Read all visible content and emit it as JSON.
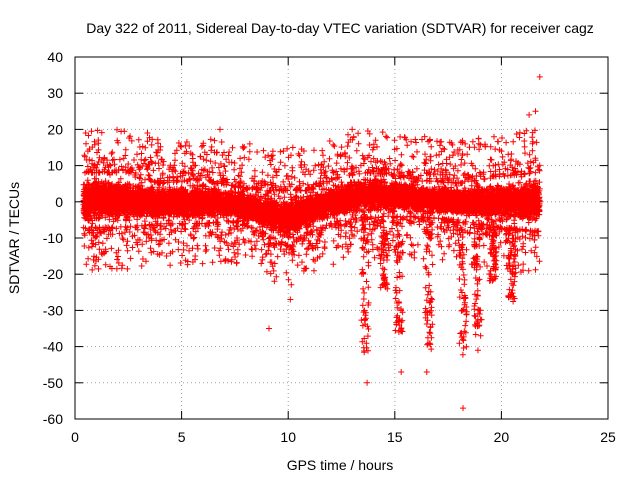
{
  "chart_data": {
    "type": "scatter",
    "title": "Day 322 of 2011, Sidereal Day-to-day VTEC variation (SDTVAR) for receiver cagz",
    "xlabel": "GPS time / hours",
    "ylabel": "SDTVAR / TECUs",
    "xlim": [
      0,
      25
    ],
    "ylim": [
      -60,
      40
    ],
    "xticks": [
      0,
      5,
      10,
      15,
      20,
      25
    ],
    "yticks": [
      -60,
      -50,
      -40,
      -30,
      -20,
      -10,
      0,
      10,
      20,
      30,
      40
    ],
    "grid": true,
    "marker": "+",
    "color": "#ff0000",
    "x_range_of_data": [
      0.4,
      21.8
    ],
    "dense_band": [
      {
        "x": 0.5,
        "low": -7,
        "high": 8
      },
      {
        "x": 2,
        "low": -7,
        "high": 8
      },
      {
        "x": 4,
        "low": -6,
        "high": 5
      },
      {
        "x": 6,
        "low": -6,
        "high": 6
      },
      {
        "x": 7.5,
        "low": -5,
        "high": 4
      },
      {
        "x": 9,
        "low": -9,
        "high": 3
      },
      {
        "x": 10,
        "low": -12,
        "high": 3
      },
      {
        "x": 11,
        "low": -8,
        "high": 3
      },
      {
        "x": 12.5,
        "low": -5,
        "high": 7
      },
      {
        "x": 14,
        "low": -4,
        "high": 8
      },
      {
        "x": 16,
        "low": -4,
        "high": 6
      },
      {
        "x": 18,
        "low": -5,
        "high": 5
      },
      {
        "x": 20,
        "low": -7,
        "high": 7
      },
      {
        "x": 21.7,
        "low": -8,
        "high": 8
      }
    ],
    "notable_points": [
      {
        "x": 0.5,
        "y": 19
      },
      {
        "x": 3.4,
        "y": 19
      },
      {
        "x": 6.8,
        "y": 20
      },
      {
        "x": 8.2,
        "y": 16
      },
      {
        "x": 9.1,
        "y": -35
      },
      {
        "x": 10.1,
        "y": -27
      },
      {
        "x": 13.0,
        "y": 20
      },
      {
        "x": 13.7,
        "y": -50
      },
      {
        "x": 14.1,
        "y": 17
      },
      {
        "x": 15.3,
        "y": -47
      },
      {
        "x": 16.4,
        "y": 18
      },
      {
        "x": 16.5,
        "y": -47
      },
      {
        "x": 18.2,
        "y": -57
      },
      {
        "x": 18.3,
        "y": 16
      },
      {
        "x": 18.9,
        "y": -41
      },
      {
        "x": 21.3,
        "y": 24
      },
      {
        "x": 21.6,
        "y": 25
      },
      {
        "x": 21.8,
        "y": 34.5
      }
    ],
    "spikes": [
      {
        "x": 13.6,
        "min": -42
      },
      {
        "x": 14.5,
        "min": -25
      },
      {
        "x": 15.2,
        "min": -36
      },
      {
        "x": 16.6,
        "min": -41
      },
      {
        "x": 18.2,
        "min": -43
      },
      {
        "x": 18.9,
        "min": -38
      },
      {
        "x": 19.6,
        "min": -22
      },
      {
        "x": 20.5,
        "min": -28
      }
    ]
  }
}
